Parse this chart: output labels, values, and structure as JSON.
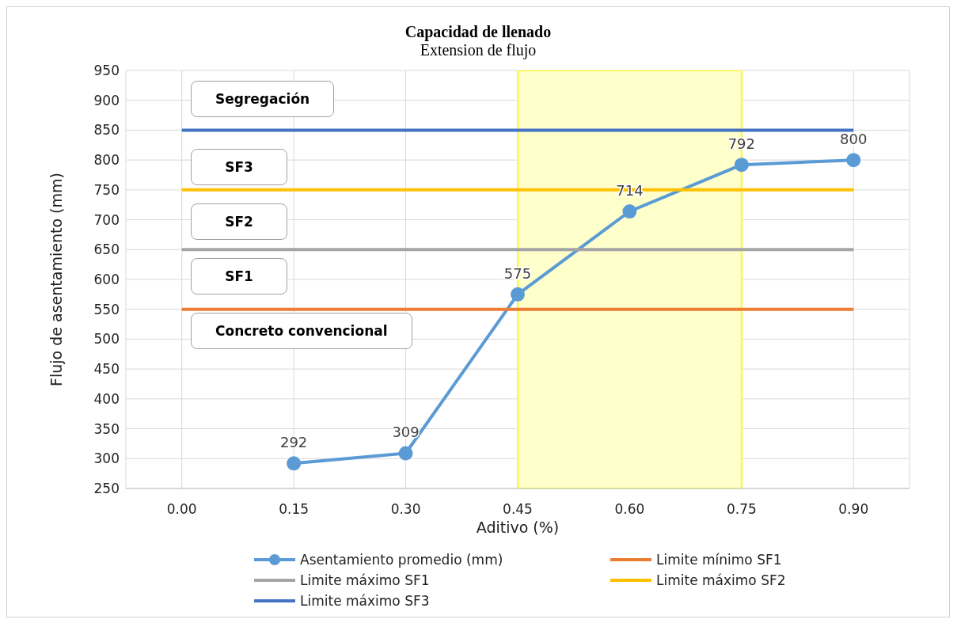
{
  "chart_data": {
    "type": "line",
    "title": "Capacidad de llenado",
    "subtitle": "Extension de flujo",
    "xlabel": "Aditivo (%)",
    "ylabel": "Flujo de asentamiento (mm)",
    "categories": [
      "0.00",
      "0.15",
      "0.30",
      "0.45",
      "0.60",
      "0.75",
      "0.90"
    ],
    "series": [
      {
        "name": "Asentamiento promedio (mm)",
        "color": "#5b9bd5",
        "marker": "circle",
        "values": [
          null,
          292,
          309,
          575,
          714,
          792,
          800
        ],
        "value_labels": [
          null,
          "292",
          "309",
          "575",
          "714",
          "792",
          "800"
        ]
      },
      {
        "name": "Limite mínimo SF1",
        "color": "#ed7d31",
        "marker": "none",
        "values": [
          550,
          550,
          550,
          550,
          550,
          550,
          550
        ]
      },
      {
        "name": "Limite máximo SF1",
        "color": "#a5a5a5",
        "marker": "none",
        "values": [
          650,
          650,
          650,
          650,
          650,
          650,
          650
        ]
      },
      {
        "name": "Limite máximo SF2",
        "color": "#ffc000",
        "marker": "none",
        "values": [
          750,
          750,
          750,
          750,
          750,
          750,
          750
        ]
      },
      {
        "name": "Limite máximo SF3",
        "color": "#4472c4",
        "marker": "none",
        "values": [
          850,
          850,
          850,
          850,
          850,
          850,
          850
        ]
      }
    ],
    "bands": [
      {
        "axis": "x",
        "from": "0.45",
        "to": "0.75",
        "color": "#ffffcc"
      }
    ],
    "annotations": [
      "Segregación",
      "SF3",
      "SF2",
      "SF1",
      "Concreto convencional"
    ],
    "ylim": [
      250,
      950
    ],
    "yticks": [
      250,
      300,
      350,
      400,
      450,
      500,
      550,
      600,
      650,
      700,
      750,
      800,
      850,
      900,
      950
    ],
    "grid": true,
    "legend": "bottom"
  }
}
